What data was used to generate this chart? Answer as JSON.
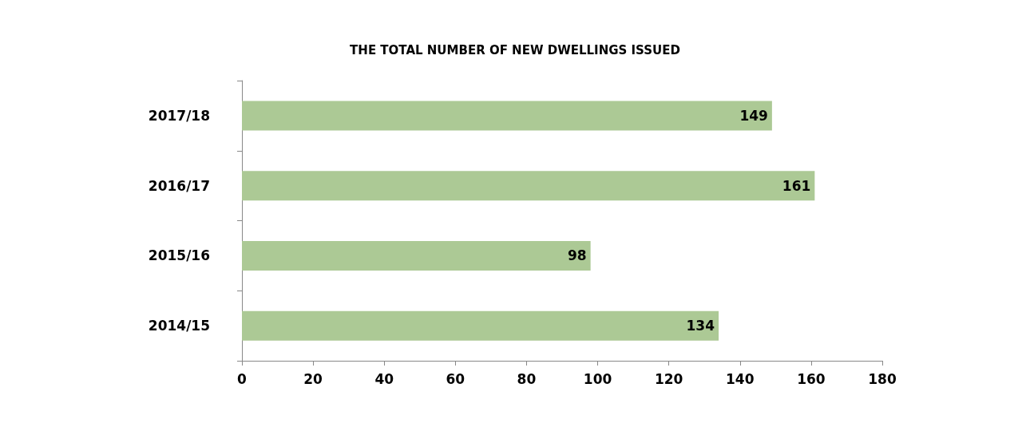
{
  "chart_data": {
    "type": "bar",
    "orientation": "horizontal",
    "title": "THE TOTAL NUMBER OF NEW DWELLINGS ISSUED",
    "categories": [
      "2017/18",
      "2016/17",
      "2015/16",
      "2014/15"
    ],
    "values": [
      149,
      161,
      98,
      134
    ],
    "color": "#acc995",
    "xlim": [
      0,
      180
    ],
    "xticks": [
      0,
      20,
      40,
      60,
      80,
      100,
      120,
      140,
      160,
      180
    ],
    "grid": false,
    "data_labels": true
  }
}
